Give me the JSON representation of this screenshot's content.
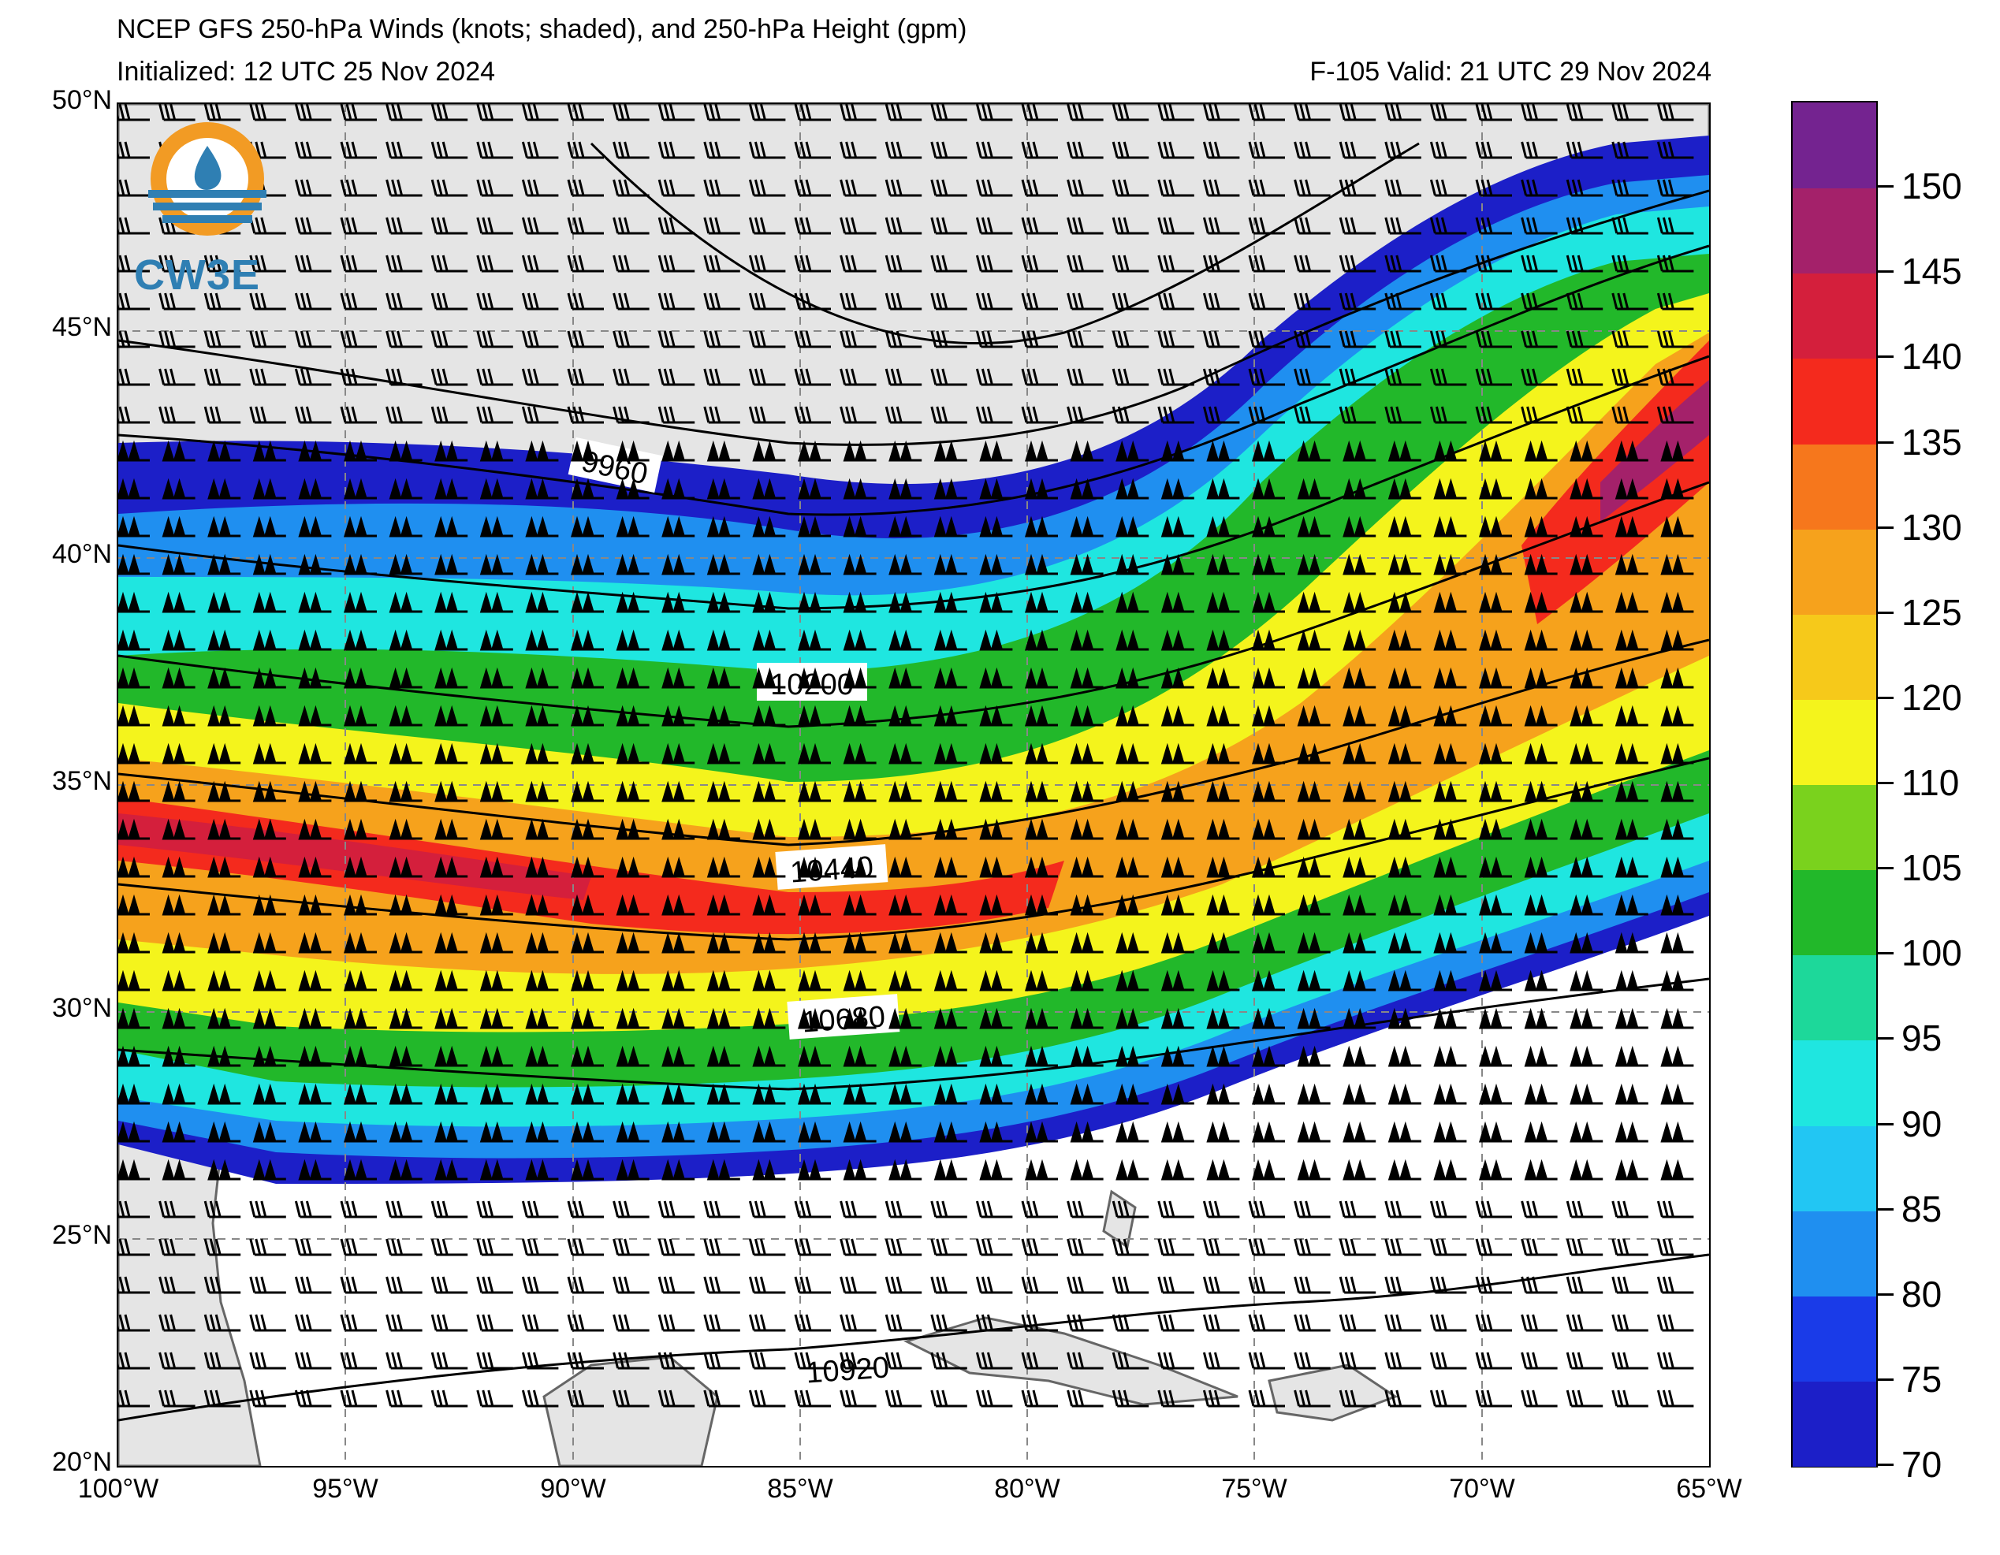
{
  "header": {
    "title": "NCEP GFS 250-hPa Winds (knots; shaded), and 250-hPa Height (gpm)",
    "initialized": "Initialized: 12 UTC 25 Nov 2024",
    "valid": "F-105  Valid: 21 UTC 29 Nov 2024"
  },
  "logo": {
    "text": "CW3E"
  },
  "map": {
    "lat_labels": [
      "50°N",
      "45°N",
      "40°N",
      "35°N",
      "30°N",
      "25°N",
      "20°N"
    ],
    "lon_labels": [
      "100°W",
      "95°W",
      "90°W",
      "85°W",
      "80°W",
      "75°W",
      "70°W",
      "65°W"
    ],
    "extent": {
      "lon_min": -100,
      "lon_max": -65,
      "lat_min": 20,
      "lat_max": 50
    },
    "contour_labels": [
      "9960",
      "10200",
      "10440",
      "10680",
      "10920"
    ],
    "land_color": "#e5e5e5",
    "ocean_color": "#ffffff"
  },
  "colorbar": {
    "labels": [
      "70",
      "75",
      "80",
      "85",
      "90",
      "95",
      "100",
      "105",
      "110",
      "120",
      "125",
      "130",
      "135",
      "140",
      "145",
      "150"
    ],
    "colors": [
      "#1c1fc8",
      "#1a3be8",
      "#1f8ff0",
      "#22c6f3",
      "#1fe6e0",
      "#1dd89a",
      "#22b82a",
      "#7ad21d",
      "#f4f41c",
      "#f6c91a",
      "#f6a21c",
      "#f6771c",
      "#f42a1d",
      "#d41f3c",
      "#a4216a",
      "#742390"
    ]
  }
}
